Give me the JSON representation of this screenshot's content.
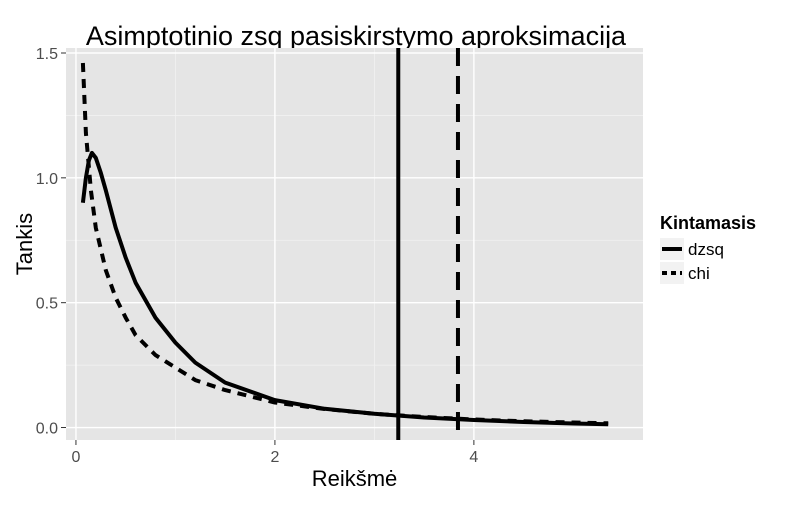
{
  "chart_data": {
    "type": "line",
    "title": "Asimptotinio zsq pasiskirstymo aproksimacija",
    "xlabel": "Reikšmė",
    "ylabel": "Tankis",
    "xlim": [
      -0.1,
      5.7
    ],
    "ylim": [
      -0.05,
      1.52
    ],
    "x_ticks": [
      0,
      2,
      4
    ],
    "y_ticks": [
      0.0,
      0.5,
      1.0,
      1.5
    ],
    "x_tick_labels": [
      "0",
      "2",
      "4"
    ],
    "y_tick_labels": [
      "0.0",
      "0.5",
      "1.0",
      "1.5"
    ],
    "grid": true,
    "legend": {
      "title": "Kintamasis",
      "position": "right"
    },
    "series": [
      {
        "name": "dzsq",
        "line_style": "solid",
        "x": [
          0.07,
          0.1,
          0.13,
          0.16,
          0.2,
          0.25,
          0.3,
          0.4,
          0.5,
          0.6,
          0.8,
          1.0,
          1.2,
          1.5,
          2.0,
          2.5,
          3.0,
          3.5,
          4.0,
          4.5,
          5.0,
          5.35
        ],
        "y": [
          0.9,
          1.0,
          1.07,
          1.1,
          1.08,
          1.02,
          0.95,
          0.8,
          0.68,
          0.58,
          0.44,
          0.34,
          0.26,
          0.18,
          0.11,
          0.075,
          0.055,
          0.04,
          0.03,
          0.022,
          0.016,
          0.013
        ]
      },
      {
        "name": "chi",
        "line_style": "dashed",
        "x": [
          0.07,
          0.1,
          0.15,
          0.2,
          0.3,
          0.4,
          0.5,
          0.6,
          0.8,
          1.0,
          1.2,
          1.5,
          2.0,
          2.5,
          3.0,
          3.5,
          4.0,
          4.5,
          5.0,
          5.35
        ],
        "y": [
          1.46,
          1.18,
          0.95,
          0.8,
          0.63,
          0.52,
          0.44,
          0.37,
          0.29,
          0.24,
          0.19,
          0.15,
          0.1,
          0.074,
          0.055,
          0.042,
          0.032,
          0.025,
          0.02,
          0.017
        ]
      }
    ],
    "vlines": [
      {
        "name": "dzsq",
        "x": 3.24,
        "line_style": "solid"
      },
      {
        "name": "chi",
        "x": 3.84,
        "line_style": "dashed"
      }
    ],
    "colors": {
      "panel_bg": "#e5e5e5",
      "grid_major": "#ffffff",
      "grid_minor": "#f2f2f2",
      "line": "#000000",
      "axis_text": "#4d4d4d",
      "title_text": "#000000"
    }
  }
}
